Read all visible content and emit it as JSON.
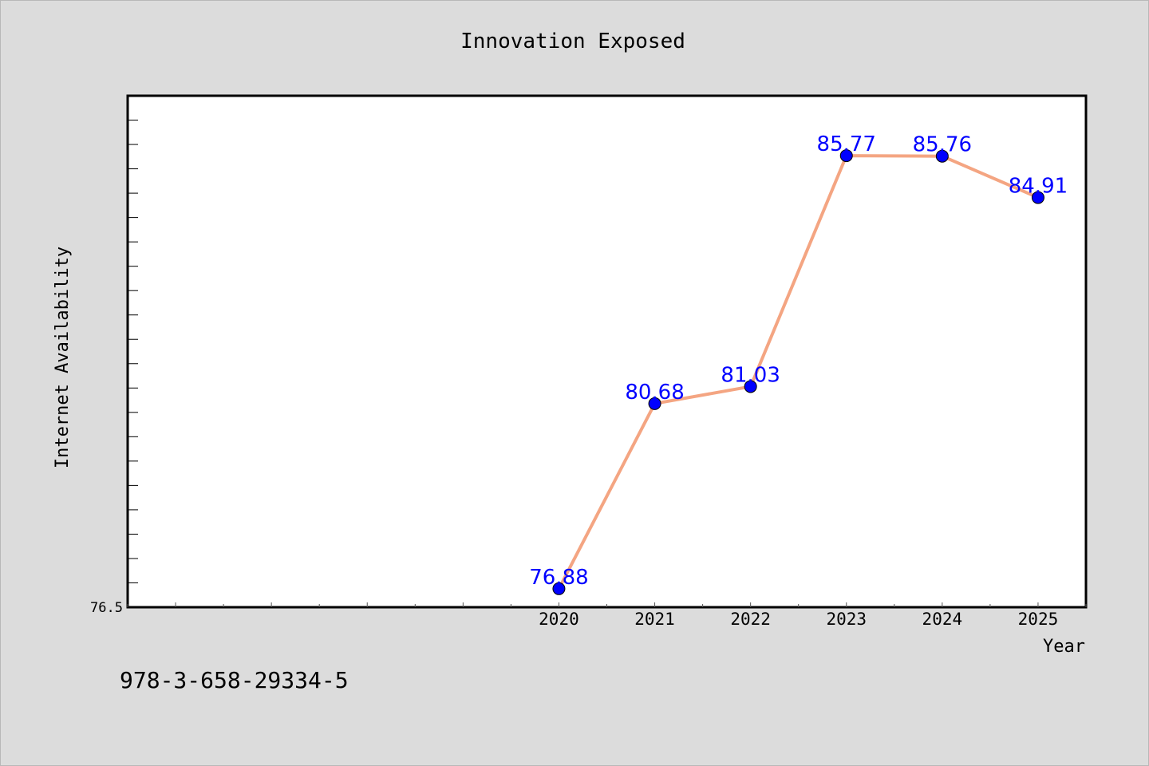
{
  "chart_data": {
    "type": "line",
    "title": "Innovation Exposed",
    "xlabel": "Year",
    "ylabel": "Internet Availability",
    "x": [
      2020,
      2021,
      2022,
      2023,
      2024,
      2025
    ],
    "x_tick_labels": [
      "2020",
      "2021",
      "2022",
      "2023",
      "2024",
      "2025"
    ],
    "y_tick_labels": [
      "76.5"
    ],
    "xlim": [
      2015.5,
      2025.5
    ],
    "ylim": [
      76.5,
      87.0
    ],
    "grid": false,
    "series": [
      {
        "values": [
          76.88,
          80.68,
          81.03,
          85.77,
          85.76,
          84.91
        ],
        "labels": [
          "76.88",
          "80.68",
          "81.03",
          "85.77",
          "85.76",
          "84.91"
        ],
        "line_color": "#f4a582",
        "marker_color": "#0000ff",
        "label_color": "#0000ff"
      }
    ],
    "annotations": [
      "978-3-658-29334-5"
    ]
  }
}
